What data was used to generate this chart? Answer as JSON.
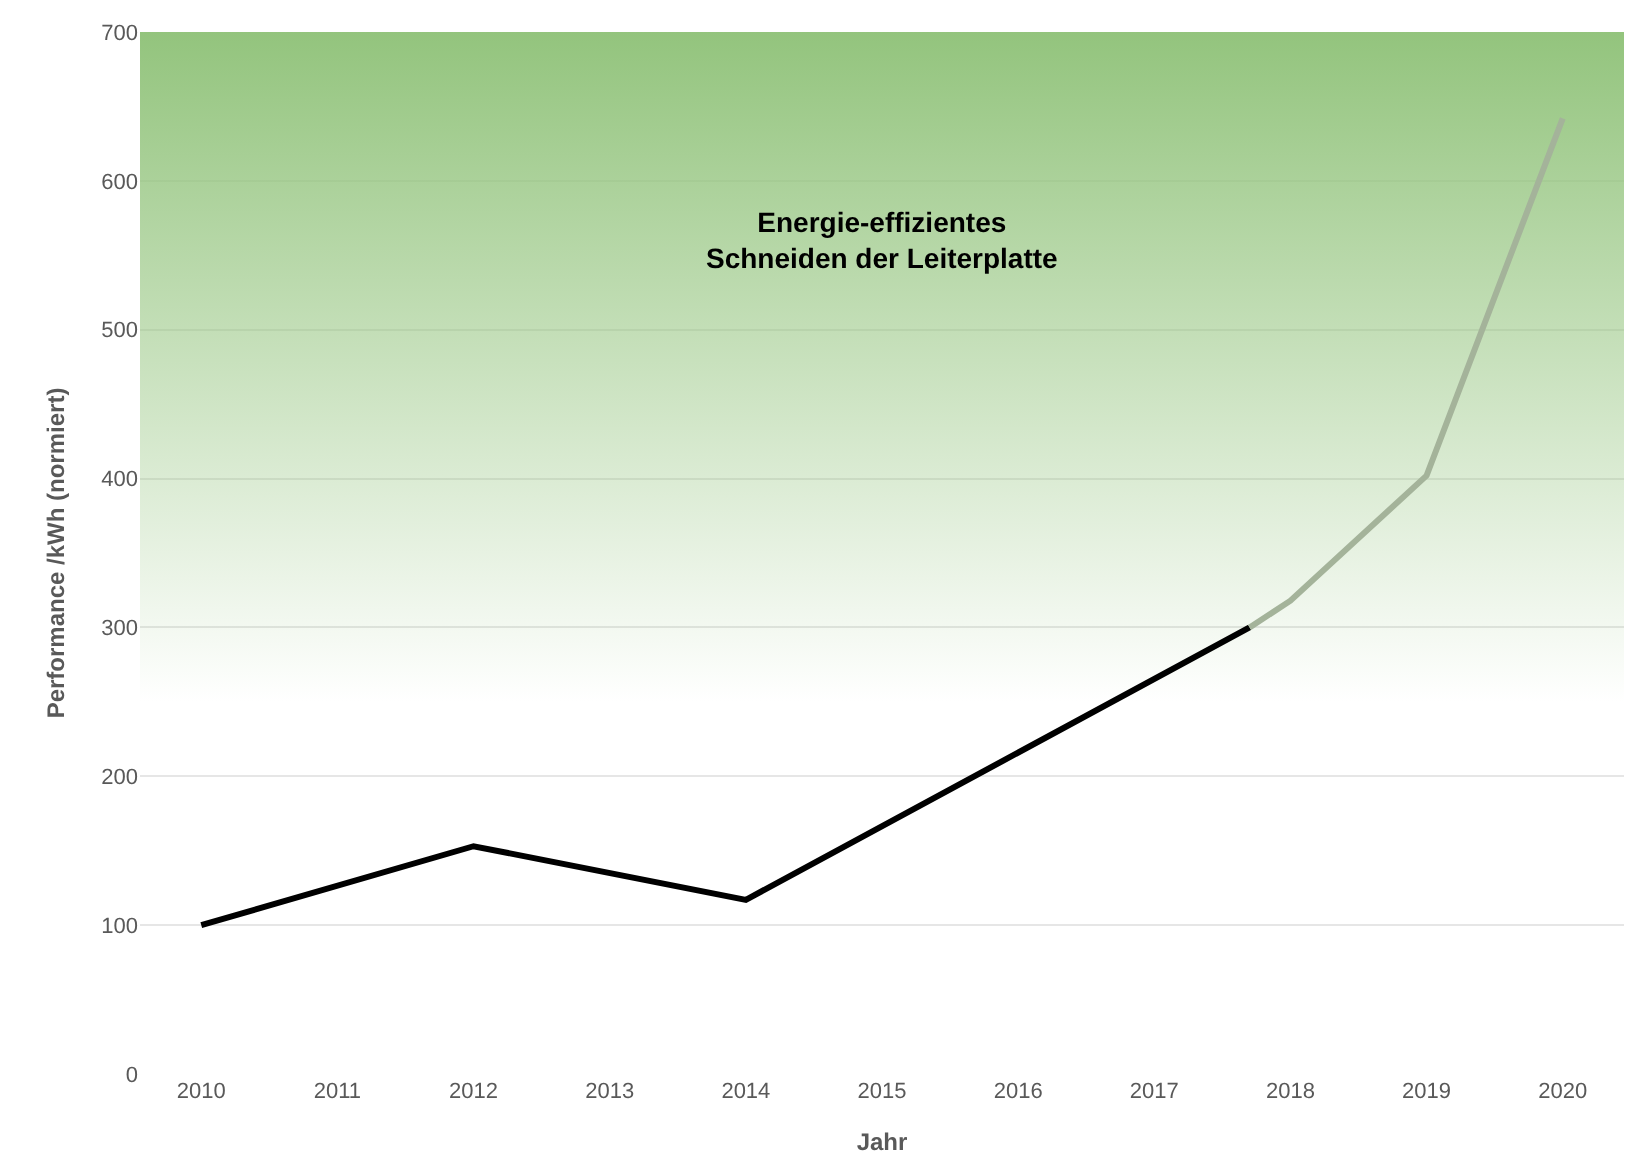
{
  "chart_data": {
    "type": "line",
    "xlabel": "Jahr",
    "ylabel": "Performance /kWh (normiert)",
    "series": [
      {
        "color": "#000000",
        "x": [
          2010,
          2012,
          2014,
          2017.7
        ],
        "values": [
          100,
          153,
          117,
          300
        ]
      },
      {
        "color": "#a4b39a",
        "x": [
          2017.7,
          2018,
          2019,
          2020
        ],
        "values": [
          300,
          318,
          402,
          642
        ]
      }
    ],
    "xlim": [
      2009.55,
      2020.45
    ],
    "xticks": [
      2010,
      2011,
      2012,
      2013,
      2014,
      2015,
      2016,
      2017,
      2018,
      2019,
      2020
    ],
    "ylim": [
      0,
      700
    ],
    "yticks": [
      0,
      100,
      200,
      300,
      400,
      500,
      600,
      700
    ],
    "bands": [
      {
        "axis": "y",
        "from": 250,
        "to": 700,
        "color": "#93c47d",
        "label": "Energie-effizientes\nSchneiden der Leiterplatte"
      }
    ],
    "grid": "y",
    "marker": "none",
    "line_style": "solid"
  }
}
